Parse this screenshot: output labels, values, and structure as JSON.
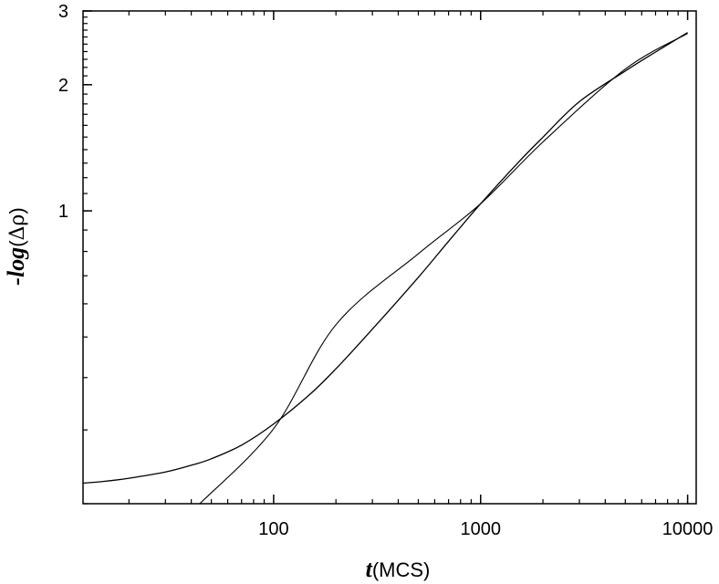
{
  "chart_data": {
    "type": "line",
    "x_scale": "log",
    "y_scale": "log",
    "xlim": [
      12,
      11000
    ],
    "ylim": [
      0.2,
      3
    ],
    "grid": false,
    "legend": "none",
    "xlabel": {
      "var": "t",
      "rest": "(MCS)"
    },
    "ylabel": {
      "var": "-log",
      "paren_open": "(",
      "symbol": "Δρ",
      "paren_close": ")"
    },
    "x_ticks": [
      {
        "value": 100,
        "label": "100"
      },
      {
        "value": 1000,
        "label": "1000"
      },
      {
        "value": 10000,
        "label": "10000"
      }
    ],
    "y_ticks": [
      {
        "value": 1,
        "label": "1"
      },
      {
        "value": 2,
        "label": "2"
      },
      {
        "value": 3,
        "label": "3"
      }
    ],
    "series": [
      {
        "style": "data",
        "points": [
          [
            12,
            0.224
          ],
          [
            15,
            0.226
          ],
          [
            20,
            0.23
          ],
          [
            30,
            0.238
          ],
          [
            40,
            0.247
          ],
          [
            50,
            0.256
          ],
          [
            70,
            0.276
          ],
          [
            100,
            0.31
          ],
          [
            150,
            0.365
          ],
          [
            200,
            0.42
          ],
          [
            300,
            0.522
          ],
          [
            500,
            0.694
          ],
          [
            700,
            0.846
          ],
          [
            1000,
            1.04
          ],
          [
            1500,
            1.296
          ],
          [
            2000,
            1.499
          ],
          [
            3000,
            1.822
          ],
          [
            5000,
            2.157
          ],
          [
            7000,
            2.394
          ],
          [
            10000,
            2.664
          ]
        ]
      },
      {
        "style": "fit",
        "points": [
          [
            44,
            0.2
          ],
          [
            100,
            0.302
          ],
          [
            200,
            0.535
          ],
          [
            500,
            0.79
          ],
          [
            1000,
            1.04
          ],
          [
            2000,
            1.46
          ],
          [
            5000,
            2.18
          ],
          [
            10000,
            2.65
          ]
        ]
      }
    ]
  }
}
